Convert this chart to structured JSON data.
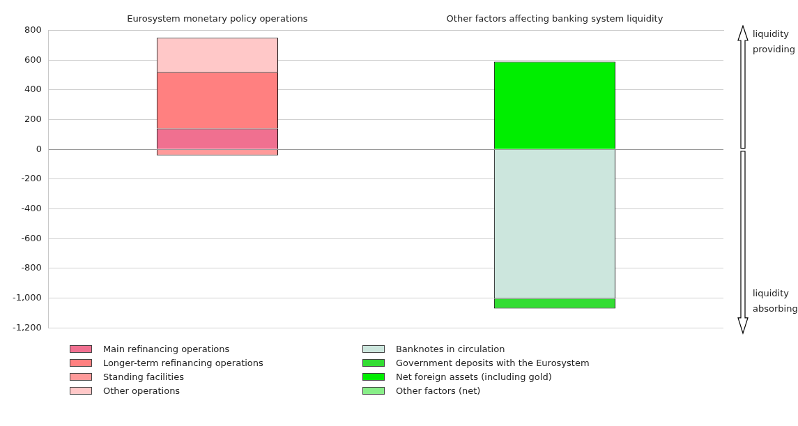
{
  "chart_data": {
    "type": "bar",
    "stacked": true,
    "categories": [
      "Eurosystem monetary policy operations",
      "Other factors affecting banking system liquidity"
    ],
    "series": [
      {
        "name": "Main refinancing operations",
        "color": "#f07090",
        "values": [
          140,
          null
        ]
      },
      {
        "name": "Longer-term refinancing operations",
        "color": "#ff8080",
        "values": [
          380,
          null
        ]
      },
      {
        "name": "Standing facilities",
        "color": "#ff9a9a",
        "values": [
          -40,
          null
        ]
      },
      {
        "name": "Other operations",
        "color": "#ffc8c8",
        "values": [
          230,
          null
        ]
      },
      {
        "name": "Banknotes in circulation",
        "color": "#cce6dd",
        "values": [
          null,
          -1005
        ]
      },
      {
        "name": "Government deposits with the Eurosystem",
        "color": "#33dd33",
        "values": [
          null,
          -65
        ]
      },
      {
        "name": "Net foreign assets (including gold)",
        "color": "#00ee00",
        "values": [
          null,
          590
        ]
      },
      {
        "name": "Other factors (net)",
        "color": "#88ee88",
        "values": [
          null,
          null
        ]
      }
    ],
    "ylim": [
      -1200,
      800
    ],
    "yticks": [
      {
        "value": -1200,
        "label": "-1,200"
      },
      {
        "value": -1000,
        "label": "-1,000"
      },
      -800,
      -600,
      -400,
      -200,
      0,
      200,
      400,
      600,
      800
    ],
    "grid": "y",
    "legend": "bottom",
    "annotations": [
      "liquidity providing",
      "liquidity absorbing"
    ]
  }
}
